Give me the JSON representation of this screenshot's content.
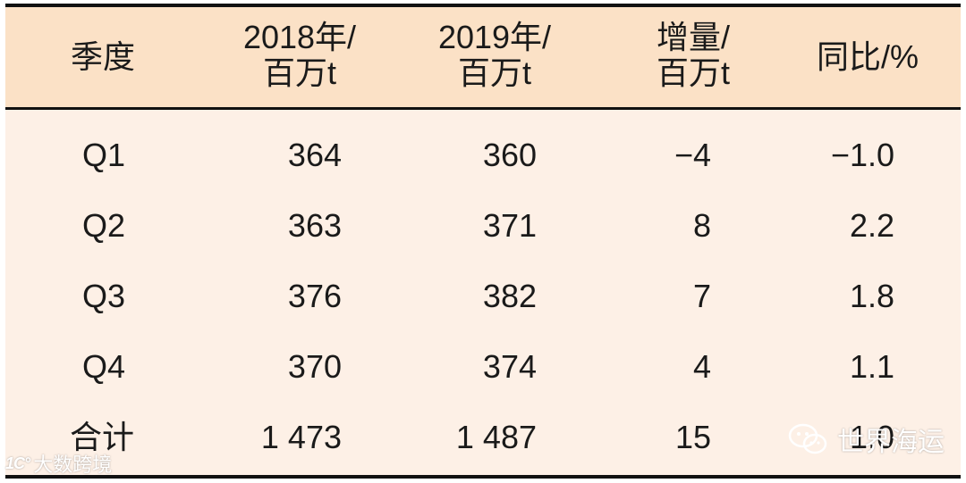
{
  "table": {
    "headers": [
      {
        "line1": "季度",
        "line2": ""
      },
      {
        "line1": "2018年/",
        "line2": "百万t"
      },
      {
        "line1": "2019年/",
        "line2": "百万t"
      },
      {
        "line1": "增量/",
        "line2": "百万t"
      },
      {
        "line1": "同比/%",
        "line2": ""
      }
    ],
    "rows": [
      [
        "Q1",
        "364",
        "360",
        "−4",
        "−1.0"
      ],
      [
        "Q2",
        "363",
        "371",
        "8",
        "2.2"
      ],
      [
        "Q3",
        "376",
        "382",
        "7",
        "1.8"
      ],
      [
        "Q4",
        "370",
        "374",
        "4",
        "1.1"
      ],
      [
        "合计",
        "1 473",
        "1 487",
        "15",
        "1.0"
      ]
    ]
  },
  "watermarks": {
    "left_logo": "1C°",
    "left_text": "大数跨境",
    "right_text": "世界海运"
  },
  "colors": {
    "header_bg": "#fbe1c6",
    "body_bg": "#fdf0e6",
    "rule": "#111111"
  }
}
